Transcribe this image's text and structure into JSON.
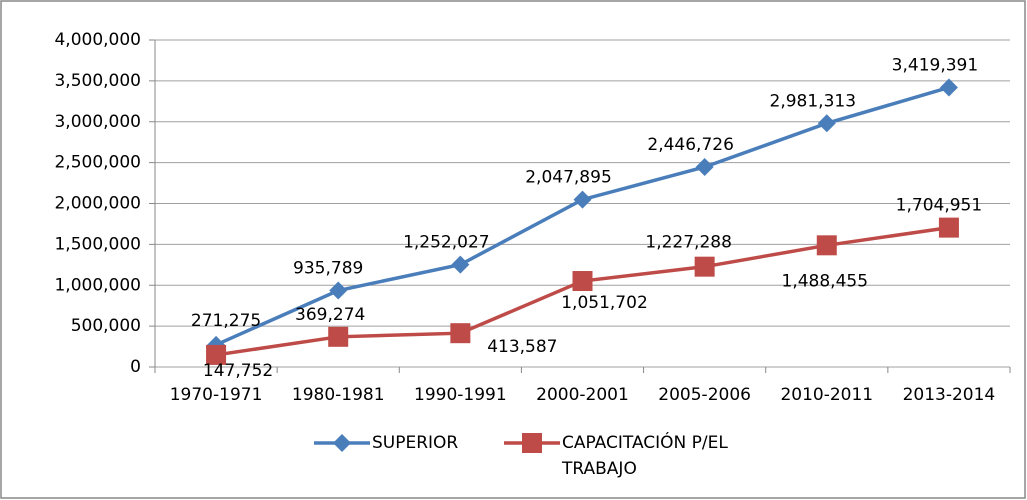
{
  "chart_data": {
    "type": "line",
    "categories": [
      "1970-1971",
      "1980-1981",
      "1990-1991",
      "2000-2001",
      "2005-2006",
      "2010-2011",
      "2013-2014"
    ],
    "series": [
      {
        "name": "SUPERIOR",
        "color": "#4a7ebb",
        "marker": "diamond",
        "values": [
          271275,
          935789,
          1252027,
          2047895,
          2446726,
          2981313,
          3419391
        ],
        "value_labels": [
          "271,275",
          "935,789",
          "1,252,027",
          "2,047,895",
          "2,446,726",
          "2,981,313",
          "3,419,391"
        ]
      },
      {
        "name": "CAPACITACIÓN P/EL TRABAJO",
        "color": "#be4b48",
        "marker": "square",
        "values": [
          147752,
          369274,
          413587,
          1051702,
          1227288,
          1488455,
          1704951
        ],
        "value_labels": [
          "147,752",
          "369,274",
          "413,587",
          "1,051,702",
          "1,227,288",
          "1,488,455",
          "1,704,951"
        ]
      }
    ],
    "ylim": [
      0,
      4000000
    ],
    "yticks": [
      0,
      {
        "value": 500000,
        "label": "500,000"
      },
      {
        "value": 1000000,
        "label": "1,000,000"
      },
      {
        "value": 1500000,
        "label": "1,500,000"
      },
      {
        "value": 2000000,
        "label": "2,000,000"
      },
      {
        "value": 2500000,
        "label": "2,500,000"
      },
      {
        "value": 3000000,
        "label": "3,000,000"
      },
      {
        "value": 3500000,
        "label": "3,500,000"
      },
      {
        "value": 4000000,
        "label": "4,000,000"
      }
    ],
    "grid": true,
    "legend": "bottom"
  }
}
